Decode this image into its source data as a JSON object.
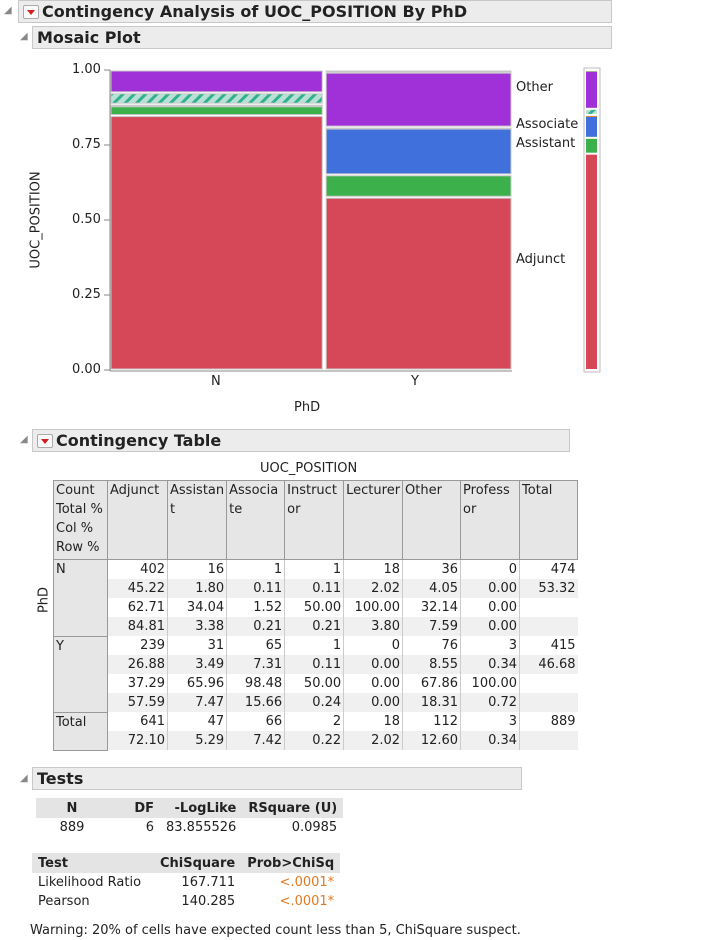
{
  "title": "Contingency Analysis of UOC_POSITION By PhD",
  "mosaic": {
    "title": "Mosaic Plot",
    "ylabel": "UOC_POSITION",
    "xlabel": "PhD",
    "yticks": [
      "1.00",
      "0.75",
      "0.50",
      "0.25",
      "0.00"
    ],
    "legend_labels": [
      "Other",
      "Associate",
      "Assistant",
      "Adjunct"
    ]
  },
  "chart_data": {
    "type": "mosaic",
    "x_categories": [
      "N",
      "Y"
    ],
    "y_categories": [
      "Adjunct",
      "Assistant",
      "Associate",
      "Instructor",
      "Lecturer",
      "Other",
      "Professor"
    ],
    "counts": {
      "N": [
        402,
        16,
        1,
        1,
        18,
        36,
        0
      ],
      "Y": [
        239,
        31,
        65,
        1,
        0,
        76,
        3
      ]
    },
    "colors": {
      "Adjunct": "#d64858",
      "Assistant": "#3cb04a",
      "Associate": "#4070dc",
      "Instructor": "#e08a40",
      "Lecturer": "#7ecdb8",
      "Other": "#a030d8",
      "Professor": "#b0a890"
    },
    "ylim": [
      0,
      1
    ]
  },
  "contingency": {
    "title": "Contingency Table",
    "col_var": "UOC_POSITION",
    "row_var": "PhD",
    "stat_labels": [
      "Count",
      "Total %",
      "Col %",
      "Row %"
    ],
    "columns": [
      [
        "Adjunct"
      ],
      [
        "Assistan",
        "t"
      ],
      [
        "Associa",
        "te"
      ],
      [
        "Instruct",
        "or"
      ],
      [
        "Lecturer"
      ],
      [
        "Other"
      ],
      [
        "Profess",
        "or"
      ],
      [
        "Total"
      ]
    ],
    "rows": [
      {
        "label": "N",
        "cells": [
          [
            "402",
            "45.22",
            "62.71",
            "84.81"
          ],
          [
            "16",
            "1.80",
            "34.04",
            "3.38"
          ],
          [
            "1",
            "0.11",
            "1.52",
            "0.21"
          ],
          [
            "1",
            "0.11",
            "50.00",
            "0.21"
          ],
          [
            "18",
            "2.02",
            "100.00",
            "3.80"
          ],
          [
            "36",
            "4.05",
            "32.14",
            "7.59"
          ],
          [
            "0",
            "0.00",
            "0.00",
            "0.00"
          ],
          [
            "474",
            "53.32",
            "",
            ""
          ]
        ]
      },
      {
        "label": "Y",
        "cells": [
          [
            "239",
            "26.88",
            "37.29",
            "57.59"
          ],
          [
            "31",
            "3.49",
            "65.96",
            "7.47"
          ],
          [
            "65",
            "7.31",
            "98.48",
            "15.66"
          ],
          [
            "1",
            "0.11",
            "50.00",
            "0.24"
          ],
          [
            "0",
            "0.00",
            "0.00",
            "0.00"
          ],
          [
            "76",
            "8.55",
            "67.86",
            "18.31"
          ],
          [
            "3",
            "0.34",
            "100.00",
            "0.72"
          ],
          [
            "415",
            "46.68",
            "",
            ""
          ]
        ]
      },
      {
        "label": "Total",
        "cells": [
          [
            "641",
            "72.10"
          ],
          [
            "47",
            "5.29"
          ],
          [
            "66",
            "7.42"
          ],
          [
            "2",
            "0.22"
          ],
          [
            "18",
            "2.02"
          ],
          [
            "112",
            "12.60"
          ],
          [
            "3",
            "0.34"
          ],
          [
            "889",
            ""
          ]
        ]
      }
    ]
  },
  "tests": {
    "title": "Tests",
    "summary_headers": [
      "N",
      "DF",
      "-LogLike",
      "RSquare (U)"
    ],
    "summary_values": [
      "889",
      "6",
      "83.855526",
      "0.0985"
    ],
    "headers": [
      "Test",
      "ChiSquare",
      "Prob>ChiSq"
    ],
    "rows": [
      [
        "Likelihood Ratio",
        "167.711",
        "<.0001*"
      ],
      [
        "Pearson",
        "140.285",
        "<.0001*"
      ]
    ],
    "warning": "Warning: 20% of cells have expected count less than 5, ChiSquare suspect."
  }
}
